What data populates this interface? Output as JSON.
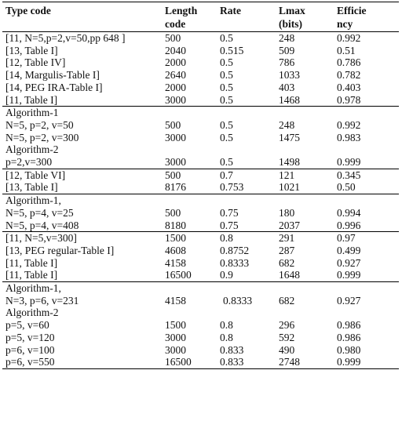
{
  "header": {
    "type_code": "Type code",
    "length_line1": "Length",
    "length_line2": "code",
    "rate": "Rate",
    "lmax_line1": "Lmax",
    "lmax_line2": "(bits)",
    "efficiency_line1": "Efficie",
    "efficiency_line2": "ncy"
  },
  "groups": [
    {
      "rows": [
        {
          "code": "[11, N=5,p=2,v=50,pp 648 ]",
          "length": "500",
          "rate": "0.5",
          "lmax": "248",
          "eff": "0.992"
        },
        {
          "code": "[13, Table I]",
          "length": "2040",
          "rate": "0.515",
          "lmax": "509",
          "eff": "0.51"
        },
        {
          "code": "[12, Table IV]",
          "length": "2000",
          "rate": "0.5",
          "lmax": "786",
          "eff": "0.786"
        },
        {
          "code": "[14, Margulis-Table I]",
          "length": "2640",
          "rate": "0.5",
          "lmax": "1033",
          "eff": "0.782"
        },
        {
          "code": "[14, PEG IRA-Table I]",
          "length": "2000",
          "rate": "0.5",
          "lmax": "403",
          "eff": "0.403"
        },
        {
          "code": "[11, Table I]",
          "length": "3000",
          "rate": "0.5",
          "lmax": "1468",
          "eff": "0.978"
        }
      ]
    },
    {
      "rows": [
        {
          "code": "Algorithm-1",
          "length": "",
          "rate": "",
          "lmax": "",
          "eff": ""
        },
        {
          "code": "N=5, p=2, v=50",
          "length": "500",
          "rate": "0.5",
          "lmax": "248",
          "eff": "0.992"
        },
        {
          "code": "N=5, p=2, v=300",
          "length": "3000",
          "rate": "0.5",
          "lmax": "1475",
          "eff": "0.983"
        },
        {
          "code": "Algorithm-2",
          "length": "",
          "rate": "",
          "lmax": "",
          "eff": ""
        },
        {
          "code": "p=2,v=300",
          "length": "3000",
          "rate": "0.5",
          "lmax": "1498",
          "eff": "0.999"
        }
      ]
    },
    {
      "rows": [
        {
          "code": "[12, Table VI]",
          "length": "500",
          "rate": "0.7",
          "lmax": "121",
          "eff": "0.345"
        },
        {
          "code": "[13, Table I]",
          "length": "8176",
          "rate": "0.753",
          "lmax": "1021",
          "eff": "0.50"
        }
      ]
    },
    {
      "rows": [
        {
          "code": "Algorithm-1,",
          "length": "",
          "rate": "",
          "lmax": "",
          "eff": ""
        },
        {
          "code": "N=5, p=4, v=25",
          "length": "500",
          "rate": "0.75",
          "lmax": "180",
          "eff": "0.994"
        },
        {
          "code": "N=5, p=4, v=408",
          "length": "8180",
          "rate": "0.75",
          "lmax": "2037",
          "eff": "0.996"
        }
      ]
    },
    {
      "rows": [
        {
          "code": "[11, N=5,v=300]",
          "length": "1500",
          "rate": "0.8",
          "lmax": "291",
          "eff": "0.97"
        },
        {
          "code": "[13, PEG regular-Table I]",
          "length": "4608",
          "rate": "0.8752",
          "lmax": "287",
          "eff": "0.499"
        },
        {
          "code": "[11, Table I]",
          "length": "4158",
          "rate": "0.8333",
          "lmax": "682",
          "eff": "0.927"
        },
        {
          "code": "[11, Table I]",
          "length": "16500",
          "rate": "0.9",
          "lmax": "1648",
          "eff": "0.999"
        }
      ]
    },
    {
      "rows": [
        {
          "code": "Algorithm-1,",
          "length": "",
          "rate": "",
          "lmax": "",
          "eff": ""
        },
        {
          "code": "N=3, p=6, v=231",
          "length": "4158",
          "rate": "0.8333",
          "lmax": "682",
          "eff": "0.927",
          "rate_indent": true
        },
        {
          "code": "Algorithm-2",
          "length": "",
          "rate": "",
          "lmax": "",
          "eff": ""
        },
        {
          "code": "p=5, v=60",
          "length": "1500",
          "rate": "0.8",
          "lmax": "296",
          "eff": "0.986"
        },
        {
          "code": "p=5, v=120",
          "length": "3000",
          "rate": "0.8",
          "lmax": "592",
          "eff": "0.986"
        },
        {
          "code": "p=6, v=100",
          "length": "3000",
          "rate": "0.833",
          "lmax": "490",
          "eff": "0.980"
        },
        {
          "code": "p=6, v=550",
          "length": "16500",
          "rate": "0.833",
          "lmax": "2748",
          "eff": "0.999"
        }
      ]
    }
  ]
}
